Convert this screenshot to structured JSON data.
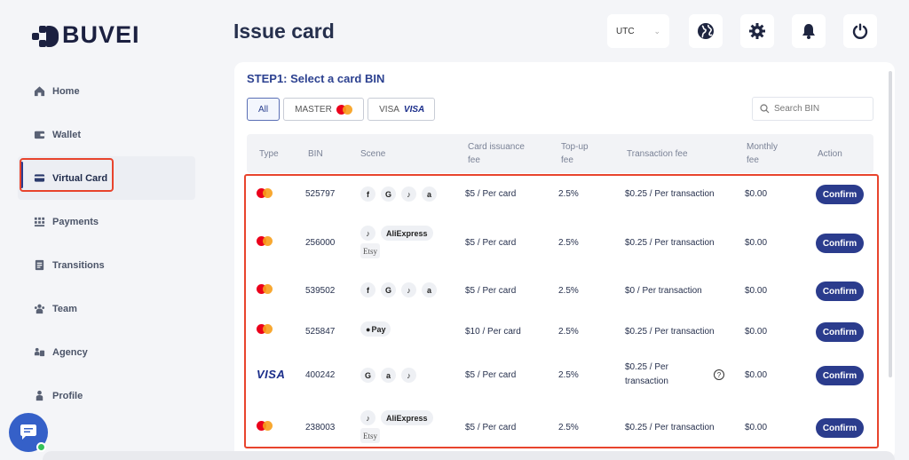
{
  "brand": {
    "name": "BUVEI"
  },
  "sidebar": {
    "items": [
      {
        "label": "Home",
        "icon": "home-icon"
      },
      {
        "label": "Wallet",
        "icon": "wallet-icon"
      },
      {
        "label": "Virtual Card",
        "icon": "card-icon",
        "active": true
      },
      {
        "label": "Payments",
        "icon": "grid-icon"
      },
      {
        "label": "Transitions",
        "icon": "document-icon"
      },
      {
        "label": "Team",
        "icon": "team-icon"
      },
      {
        "label": "Agency",
        "icon": "agency-icon"
      },
      {
        "label": "Profile",
        "icon": "user-icon"
      }
    ]
  },
  "header": {
    "title": "Issue card",
    "timezone": "UTC",
    "icons": [
      "globe-icon",
      "gear-icon",
      "bell-icon",
      "power-icon"
    ]
  },
  "panel": {
    "step_title": "STEP1: Select a card BIN",
    "filters": {
      "all": "All",
      "master": "MASTER",
      "visa": "VISA",
      "visa_brand": "VISA"
    },
    "search_placeholder": "Search BIN",
    "columns": {
      "type": "Type",
      "bin": "BIN",
      "scene": "Scene",
      "issuance_1": "Card issuance",
      "issuance_2": "fee",
      "topup_1": "Top-up",
      "topup_2": "fee",
      "txfee": "Transaction fee",
      "monthly_1": "Monthly",
      "monthly_2": "fee",
      "action": "Action"
    },
    "rows": [
      {
        "type": "mastercard",
        "bin": "525797",
        "scene": [
          "f",
          "G",
          "♪",
          "a"
        ],
        "issuance": "$5 / Per card",
        "topup": "2.5%",
        "txfee": "$0.25 / Per transaction",
        "monthly": "$0.00",
        "action": "Confirm"
      },
      {
        "type": "mastercard",
        "bin": "256000",
        "scene_line1": [
          "♪",
          "AliExpress"
        ],
        "scene_line2": "Etsy",
        "issuance": "$5 / Per card",
        "topup": "2.5%",
        "txfee": "$0.25 / Per transaction",
        "monthly": "$0.00",
        "action": "Confirm"
      },
      {
        "type": "mastercard",
        "bin": "539502",
        "scene": [
          "f",
          "G",
          "♪",
          "a"
        ],
        "issuance": "$5 / Per card",
        "topup": "2.5%",
        "txfee": "$0 / Per transaction",
        "monthly": "$0.00",
        "action": "Confirm"
      },
      {
        "type": "mastercard",
        "bin": "525847",
        "scene_pay": "Pay",
        "issuance": "$10 / Per card",
        "topup": "2.5%",
        "txfee": "$0.25 / Per transaction",
        "monthly": "$0.00",
        "action": "Confirm"
      },
      {
        "type": "visa",
        "type_label": "VISA",
        "bin": "400242",
        "scene": [
          "G",
          "a",
          "♪"
        ],
        "issuance": "$5 / Per card",
        "topup": "2.5%",
        "txfee_1": "$0.25 / Per",
        "txfee_2": "transaction",
        "help": "?",
        "monthly": "$0.00",
        "action": "Confirm"
      },
      {
        "type": "mastercard",
        "bin": "238003",
        "scene_line1": [
          "♪",
          "AliExpress"
        ],
        "scene_line2": "Etsy",
        "issuance": "$5 / Per card",
        "topup": "2.5%",
        "txfee": "$0.25 / Per transaction",
        "monthly": "$0.00",
        "action": "Confirm"
      }
    ]
  },
  "colors": {
    "accent": "#2b3c8d",
    "highlight": "#e8442d",
    "background": "#f4f5f8"
  }
}
